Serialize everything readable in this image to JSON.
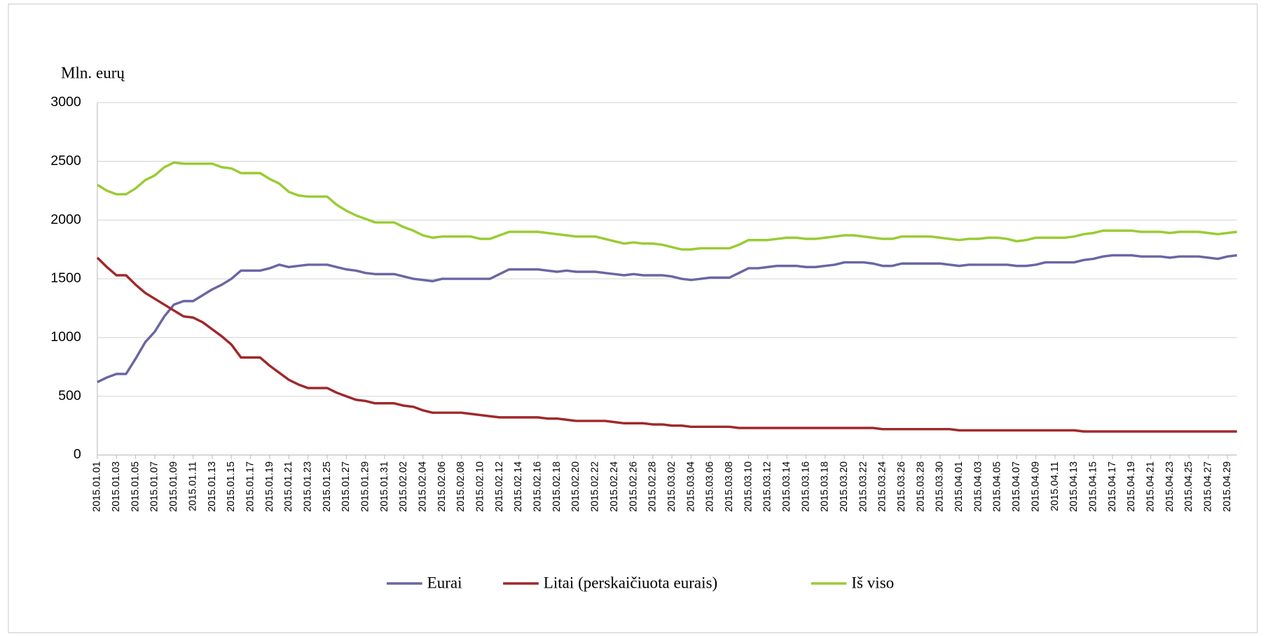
{
  "chart_data": {
    "type": "line",
    "y_label": "Mln. eurų",
    "categories": [
      "2015.01.01",
      null,
      "2015.01.03",
      null,
      "2015.01.05",
      null,
      "2015.01.07",
      null,
      "2015.01.09",
      null,
      "2015.01.11",
      null,
      "2015.01.13",
      null,
      "2015.01.15",
      null,
      "2015.01.17",
      null,
      "2015.01.19",
      null,
      "2015.01.21",
      null,
      "2015.01.23",
      null,
      "2015.01.25",
      null,
      "2015.01.27",
      null,
      "2015.01.29",
      null,
      "2015.01.31",
      null,
      "2015.02.02",
      null,
      "2015.02.04",
      null,
      "2015.02.06",
      null,
      "2015.02.08",
      null,
      "2015.02.10",
      null,
      "2015.02.12",
      null,
      "2015.02.14",
      null,
      "2015.02.16",
      null,
      "2015.02.18",
      null,
      "2015.02.20",
      null,
      "2015.02.22",
      null,
      "2015.02.24",
      null,
      "2015.02.26",
      null,
      "2015.02.28",
      null,
      "2015.03.02",
      null,
      "2015.03.04",
      null,
      "2015.03.06",
      null,
      "2015.03.08",
      null,
      "2015.03.10",
      null,
      "2015.03.12",
      null,
      "2015.03.14",
      null,
      "2015.03.16",
      null,
      "2015.03.18",
      null,
      "2015.03.20",
      null,
      "2015.03.22",
      null,
      "2015.03.24",
      null,
      "2015.03.26",
      null,
      "2015.03.28",
      null,
      "2015.03.30",
      null,
      "2015.04.01",
      null,
      "2015.04.03",
      null,
      "2015.04.05",
      null,
      "2015.04.07",
      null,
      "2015.04.09",
      null,
      "2015.04.11",
      null,
      "2015.04.13",
      null,
      "2015.04.15",
      null,
      "2015.04.17",
      null,
      "2015.04.19",
      null,
      "2015.04.21",
      null,
      "2015.04.23",
      null,
      "2015.04.25",
      null,
      "2015.04.27",
      null,
      "2015.04.29",
      null
    ],
    "series": [
      {
        "name": "Eurai",
        "color": "#6a66a3",
        "values": [
          620,
          660,
          690,
          690,
          820,
          960,
          1050,
          1180,
          1280,
          1310,
          1310,
          1360,
          1410,
          1450,
          1500,
          1570,
          1570,
          1570,
          1590,
          1620,
          1600,
          1610,
          1620,
          1620,
          1620,
          1600,
          1580,
          1570,
          1550,
          1540,
          1540,
          1540,
          1520,
          1500,
          1490,
          1480,
          1500,
          1500,
          1500,
          1500,
          1500,
          1500,
          1540,
          1580,
          1580,
          1580,
          1580,
          1570,
          1560,
          1570,
          1560,
          1560,
          1560,
          1550,
          1540,
          1530,
          1540,
          1530,
          1530,
          1530,
          1520,
          1500,
          1490,
          1500,
          1510,
          1510,
          1510,
          1550,
          1590,
          1590,
          1600,
          1610,
          1610,
          1610,
          1600,
          1600,
          1610,
          1620,
          1640,
          1640,
          1640,
          1630,
          1610,
          1610,
          1630,
          1630,
          1630,
          1630,
          1630,
          1620,
          1610,
          1620,
          1620,
          1620,
          1620,
          1620,
          1610,
          1610,
          1620,
          1640,
          1640,
          1640,
          1640,
          1660,
          1670,
          1690,
          1700,
          1700,
          1700,
          1690,
          1690,
          1690,
          1680,
          1690,
          1690,
          1690,
          1680,
          1670,
          1690,
          1700
        ]
      },
      {
        "name": "Litai (perskaičiuota eurais)",
        "color": "#a0282a",
        "values": [
          1680,
          1600,
          1530,
          1530,
          1450,
          1380,
          1330,
          1280,
          1230,
          1180,
          1170,
          1130,
          1070,
          1010,
          940,
          830,
          830,
          830,
          760,
          700,
          640,
          600,
          570,
          570,
          570,
          530,
          500,
          470,
          460,
          440,
          440,
          440,
          420,
          410,
          380,
          360,
          360,
          360,
          360,
          350,
          340,
          330,
          320,
          320,
          320,
          320,
          320,
          310,
          310,
          300,
          290,
          290,
          290,
          290,
          280,
          270,
          270,
          270,
          260,
          260,
          250,
          250,
          240,
          240,
          240,
          240,
          240,
          230,
          230,
          230,
          230,
          230,
          230,
          230,
          230,
          230,
          230,
          230,
          230,
          230,
          230,
          230,
          220,
          220,
          220,
          220,
          220,
          220,
          220,
          220,
          210,
          210,
          210,
          210,
          210,
          210,
          210,
          210,
          210,
          210,
          210,
          210,
          210,
          200,
          200,
          200,
          200,
          200,
          200,
          200,
          200,
          200,
          200,
          200,
          200,
          200,
          200,
          200,
          200,
          200
        ]
      },
      {
        "name": "Iš viso",
        "color": "#99cc33",
        "values": [
          2300,
          2250,
          2220,
          2220,
          2270,
          2340,
          2380,
          2450,
          2490,
          2480,
          2480,
          2480,
          2480,
          2450,
          2440,
          2400,
          2400,
          2400,
          2350,
          2310,
          2240,
          2210,
          2200,
          2200,
          2200,
          2130,
          2080,
          2040,
          2010,
          1980,
          1980,
          1980,
          1940,
          1910,
          1870,
          1850,
          1860,
          1860,
          1860,
          1860,
          1840,
          1840,
          1870,
          1900,
          1900,
          1900,
          1900,
          1890,
          1880,
          1870,
          1860,
          1860,
          1860,
          1840,
          1820,
          1800,
          1810,
          1800,
          1800,
          1790,
          1770,
          1750,
          1750,
          1760,
          1760,
          1760,
          1760,
          1790,
          1830,
          1830,
          1830,
          1840,
          1850,
          1850,
          1840,
          1840,
          1850,
          1860,
          1870,
          1870,
          1860,
          1850,
          1840,
          1840,
          1860,
          1860,
          1860,
          1860,
          1850,
          1840,
          1830,
          1840,
          1840,
          1850,
          1850,
          1840,
          1820,
          1830,
          1850,
          1850,
          1850,
          1850,
          1860,
          1880,
          1890,
          1910,
          1910,
          1910,
          1910,
          1900,
          1900,
          1900,
          1890,
          1900,
          1900,
          1900,
          1890,
          1880,
          1890,
          1900
        ]
      }
    ],
    "ylim": [
      0,
      3000
    ],
    "yticks": [
      0,
      500,
      1000,
      1500,
      2000,
      2500,
      3000
    ],
    "grid": true
  }
}
